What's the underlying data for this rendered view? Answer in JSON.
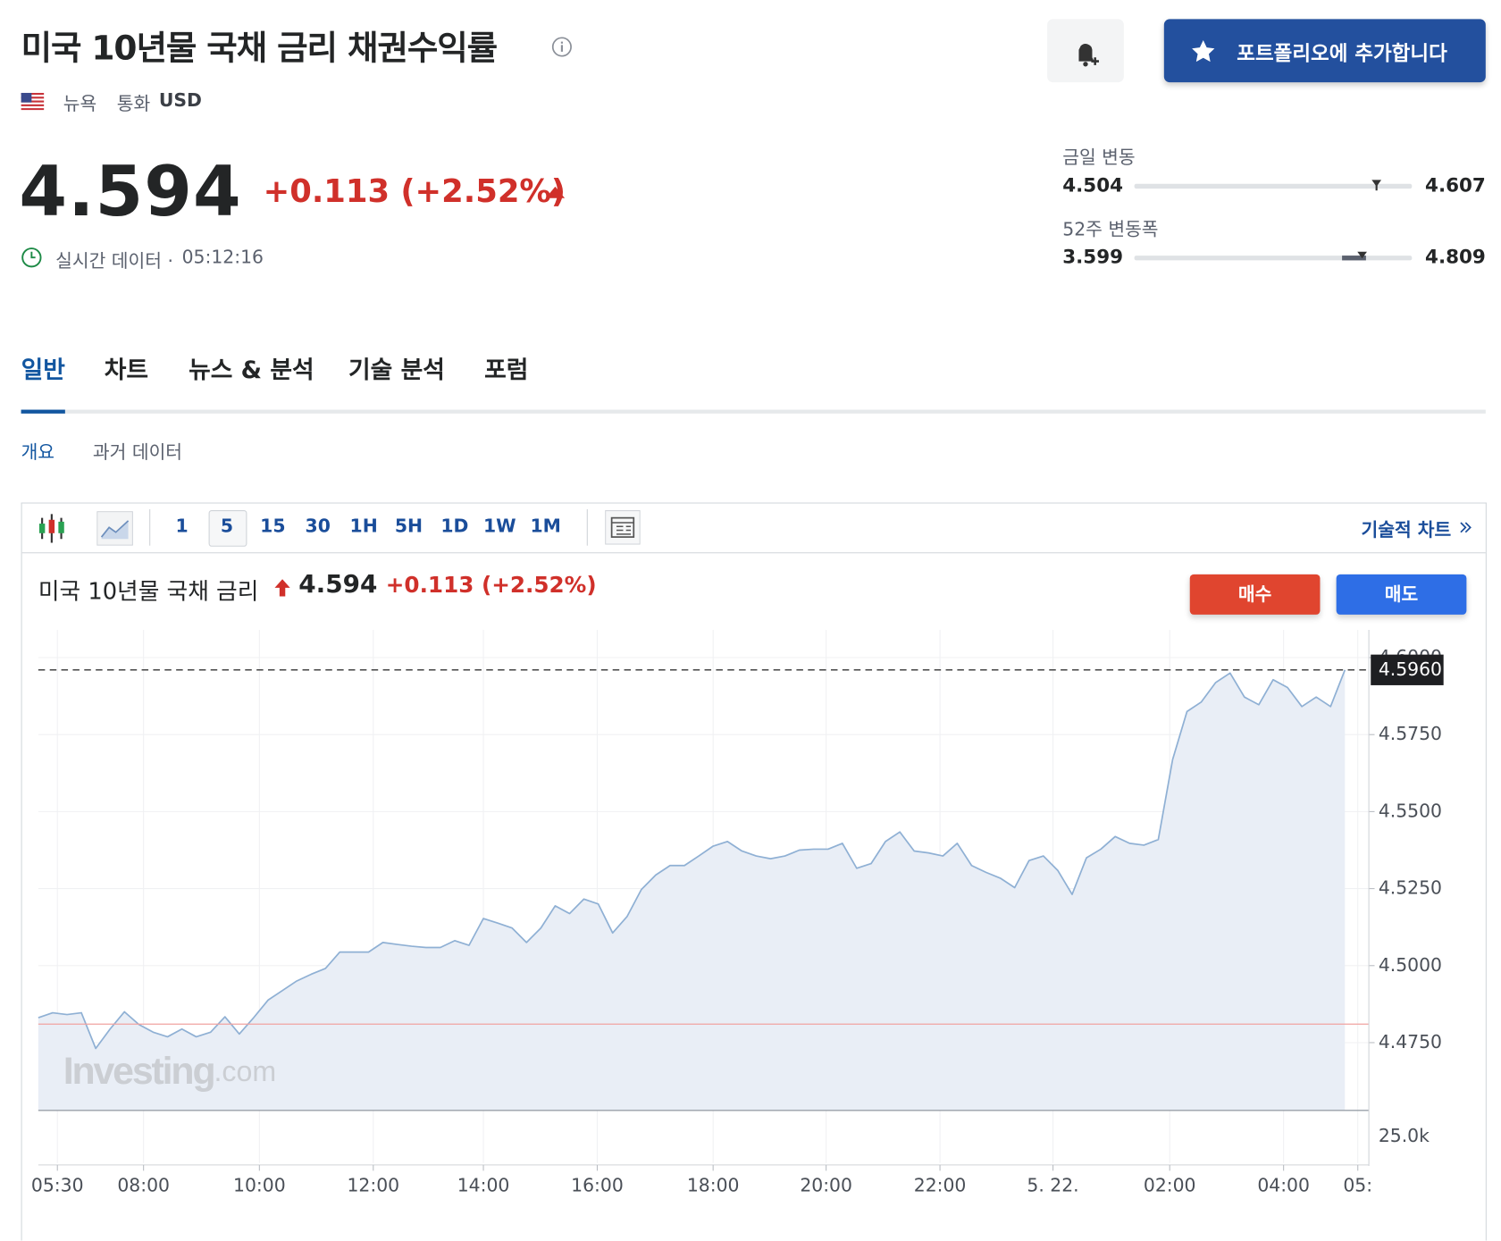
{
  "header": {
    "title": "미국 10년물 국채 금리 채권수익률",
    "exchange": "뉴욕",
    "currency_label": "통화",
    "currency": "USD",
    "portfolio_button": "포트폴리오에 추가합니다",
    "price": 4.594,
    "change": "+0.113 (+2.52%)",
    "realtime_label": "실시간 데이터 ·",
    "time": "05:12:16"
  },
  "ranges": [
    {
      "label": "금일 변동",
      "low": 4.504,
      "high": 4.607
    },
    {
      "label": "52주 변동폭",
      "low": 3.599,
      "high": 4.809
    }
  ],
  "tabs": [
    "일반",
    "차트",
    "뉴스 & 분석",
    "기술 분석",
    "포럼"
  ],
  "subtabs": [
    "개요",
    "과거 데이터"
  ],
  "toolbar": {
    "intervals": [
      "1",
      "5",
      "15",
      "30",
      "1H",
      "5H",
      "1D",
      "1W",
      "1M"
    ],
    "link": "기술적 차트"
  },
  "buttons": {
    "buy": "매수",
    "sell": "매도"
  },
  "watermark": {
    "brand": "Investing",
    "suffix": ".com"
  },
  "chart_data": {
    "type": "area",
    "title": "미국 10년물 국채 금리",
    "color": "#8fb0d4",
    "fill": "#e9eef6",
    "grid": true,
    "values": [
      4.4831,
      4.4847,
      4.4841,
      4.4847,
      4.4731,
      4.4794,
      4.485,
      4.4809,
      4.4784,
      4.4769,
      4.4794,
      4.4769,
      4.4784,
      4.4834,
      4.4778,
      4.4831,
      4.4888,
      4.4919,
      4.495,
      4.4972,
      4.4991,
      4.5044,
      4.5044,
      4.5044,
      4.5075,
      4.5069,
      4.5063,
      4.5059,
      4.5059,
      4.5081,
      4.5066,
      4.5153,
      4.5138,
      4.5122,
      4.5075,
      4.5122,
      4.5194,
      4.5169,
      4.5216,
      4.52,
      4.5106,
      4.5159,
      4.5247,
      4.5294,
      4.5325,
      4.5325,
      4.5356,
      4.5388,
      4.5403,
      4.5372,
      4.5356,
      4.5347,
      4.5356,
      4.5375,
      4.5378,
      4.5378,
      4.5397,
      4.5316,
      4.5331,
      4.5403,
      4.5434,
      4.5372,
      4.5366,
      4.5356,
      4.5397,
      4.5325,
      4.5303,
      4.5284,
      4.5253,
      4.5341,
      4.5356,
      4.5309,
      4.5231,
      4.535,
      4.5378,
      4.5419,
      4.5397,
      4.5391,
      4.5409,
      4.5669,
      4.5825,
      4.5856,
      4.5919,
      4.595,
      4.5872,
      4.5847,
      4.5928,
      4.5903,
      4.5841,
      4.5872,
      4.5841,
      4.596
    ],
    "last": {
      "value": 4.596,
      "label": "4.5960"
    },
    "previous_close": 4.481,
    "ylim": [
      4.453,
      4.609
    ],
    "yticks": [
      {
        "value": 4.475,
        "label": "4.4750"
      },
      {
        "value": 4.5,
        "label": "4.5000"
      },
      {
        "value": 4.525,
        "label": "4.5250"
      },
      {
        "value": 4.55,
        "label": "4.5500"
      },
      {
        "value": 4.575,
        "label": "4.5750"
      },
      {
        "value": 4.6,
        "label": "4.6000"
      }
    ],
    "xlim": [
      0,
      92.67
    ],
    "xticks": [
      {
        "value": 1.33,
        "label": "05:30"
      },
      {
        "value": 7.33,
        "label": "08:00"
      },
      {
        "value": 15.4,
        "label": "10:00"
      },
      {
        "value": 23.33,
        "label": "12:00"
      },
      {
        "value": 31,
        "label": "14:00"
      },
      {
        "value": 38.93,
        "label": "16:00"
      },
      {
        "value": 47,
        "label": "18:00"
      },
      {
        "value": 54.87,
        "label": "20:00"
      },
      {
        "value": 62.8,
        "label": "22:00"
      },
      {
        "value": 70.67,
        "label": "5. 22."
      },
      {
        "value": 78.8,
        "label": "02:00"
      },
      {
        "value": 86.73,
        "label": "04:00"
      },
      {
        "value": 91.9,
        "label": "05:"
      }
    ],
    "volume_label": "25.0k"
  }
}
